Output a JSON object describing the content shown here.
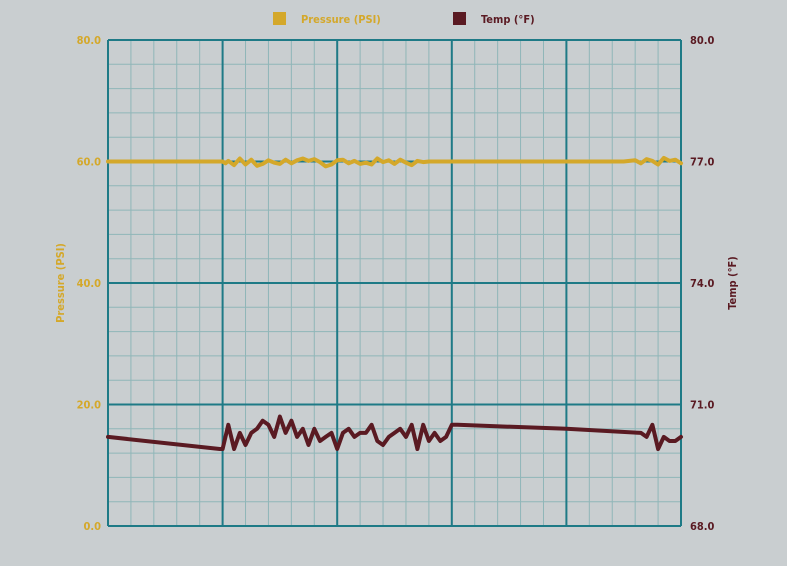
{
  "chart_data": {
    "type": "line",
    "legend": {
      "position": "top-center",
      "items": [
        {
          "label": "Pressure (PSI)",
          "color": "#d4a82a"
        },
        {
          "label": "Temp (°F)",
          "color": "#5a1a22"
        }
      ]
    },
    "left_axis": {
      "label": "Pressure (PSI)",
      "color": "#d4a82a",
      "ylim": [
        0,
        80
      ],
      "ticks": [
        0,
        20,
        40,
        60,
        80
      ],
      "tick_labels": [
        "0.0",
        "20.0",
        "40.0",
        "60.0",
        "80.0"
      ]
    },
    "right_axis": {
      "label": "Temp (°F)",
      "color": "#5a1a22",
      "ylim": [
        68,
        80
      ],
      "ticks": [
        68,
        71,
        74,
        77,
        80
      ],
      "tick_labels": [
        "68.0",
        "71.0",
        "74.0",
        "77.0",
        "80.0"
      ]
    },
    "grid": {
      "major": true,
      "minor": true,
      "major_color": "#1e7a86",
      "minor_color": "#8fb6b8"
    },
    "x_range": [
      0,
      100
    ],
    "series": [
      {
        "name": "Pressure (PSI)",
        "axis": "left",
        "color": "#d4a82a",
        "x": [
          0,
          10,
          20,
          20.5,
          21,
          22,
          23,
          24,
          25,
          26,
          27,
          28,
          29,
          30,
          31,
          32,
          33,
          34,
          35,
          36,
          37,
          38,
          39,
          40,
          41,
          42,
          43,
          44,
          45,
          46,
          47,
          48,
          49,
          50,
          51,
          52,
          53,
          54,
          55,
          56,
          57,
          58,
          59,
          60,
          70,
          80,
          90,
          92,
          93,
          94,
          95,
          96,
          97,
          98,
          99,
          100
        ],
        "y": [
          60,
          60,
          60,
          59.7,
          60.1,
          59.4,
          60.5,
          59.5,
          60.3,
          59.3,
          59.6,
          60.2,
          59.8,
          59.6,
          60.3,
          59.7,
          60.2,
          60.5,
          60.1,
          60.4,
          59.9,
          59.2,
          59.5,
          60.2,
          60.3,
          59.7,
          60.1,
          59.6,
          59.8,
          59.5,
          60.5,
          59.9,
          60.2,
          59.6,
          60.3,
          59.8,
          59.4,
          60.1,
          59.9,
          60,
          60,
          60,
          60,
          60,
          60,
          60,
          60,
          60.2,
          59.7,
          60.4,
          60.1,
          59.5,
          60.6,
          60.1,
          60.3,
          59.7
        ]
      },
      {
        "name": "Temp (°F)",
        "axis": "right",
        "color": "#5a1a22",
        "x": [
          0,
          19.5,
          20,
          21,
          22,
          23,
          24,
          25,
          26,
          27,
          28,
          29,
          30,
          31,
          32,
          33,
          34,
          35,
          36,
          37,
          38,
          39,
          40,
          41,
          42,
          43,
          44,
          45,
          46,
          47,
          48,
          49,
          50,
          51,
          52,
          53,
          54,
          55,
          56,
          57,
          58,
          59,
          60,
          61,
          80,
          93,
          94,
          95,
          96,
          97,
          98,
          99,
          100
        ],
        "y": [
          70.2,
          69.9,
          69.9,
          70.5,
          69.9,
          70.3,
          70.0,
          70.3,
          70.4,
          70.6,
          70.5,
          70.2,
          70.7,
          70.3,
          70.6,
          70.2,
          70.4,
          70.0,
          70.4,
          70.1,
          70.2,
          70.3,
          69.9,
          70.3,
          70.4,
          70.2,
          70.3,
          70.3,
          70.5,
          70.1,
          70.0,
          70.2,
          70.3,
          70.4,
          70.2,
          70.5,
          69.9,
          70.5,
          70.1,
          70.3,
          70.1,
          70.2,
          70.5,
          70.5,
          70.4,
          70.3,
          70.2,
          70.5,
          69.9,
          70.2,
          70.1,
          70.1,
          70.2
        ]
      }
    ]
  }
}
